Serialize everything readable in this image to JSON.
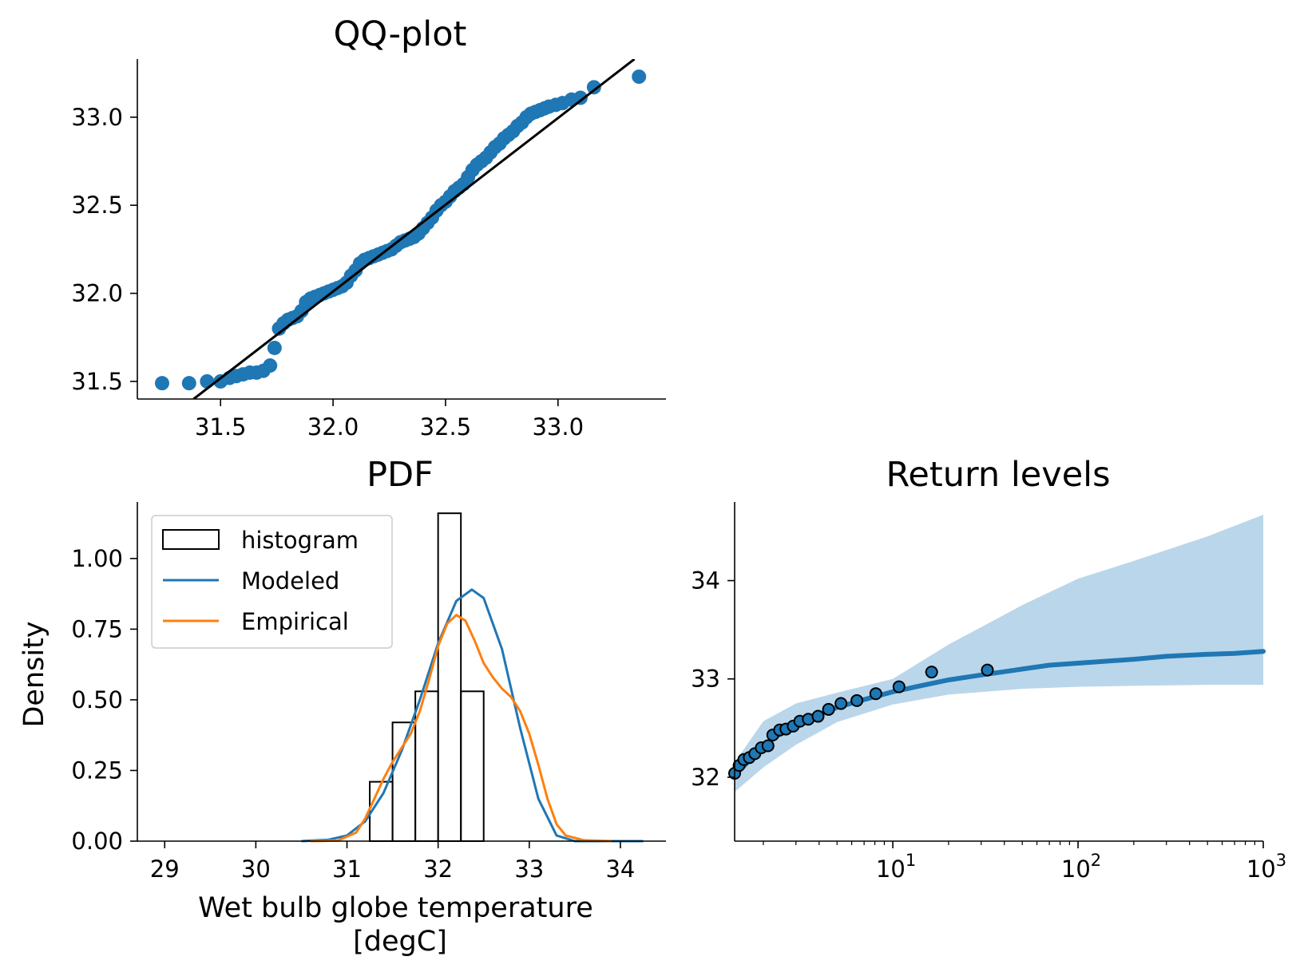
{
  "colors": {
    "blue": "#1f77b4",
    "orange": "#ff7f0e",
    "band": "#bad6ea",
    "black": "#000000"
  },
  "chart_data": [
    {
      "type": "scatter",
      "title": "QQ-plot",
      "xlabel": "",
      "ylabel": "",
      "xlim": [
        31.13,
        33.48
      ],
      "ylim": [
        31.4,
        33.33
      ],
      "x_ticks": [
        "31.5",
        "32.0",
        "32.5",
        "33.0"
      ],
      "y_ticks": [
        "31.5",
        "32.0",
        "32.5",
        "33.0"
      ],
      "grid": false,
      "points": [
        [
          31.24,
          31.49
        ],
        [
          31.36,
          31.49
        ],
        [
          31.44,
          31.5
        ],
        [
          31.5,
          31.5
        ],
        [
          31.54,
          31.52
        ],
        [
          31.57,
          31.53
        ],
        [
          31.6,
          31.54
        ],
        [
          31.63,
          31.55
        ],
        [
          31.66,
          31.55
        ],
        [
          31.69,
          31.56
        ],
        [
          31.72,
          31.59
        ],
        [
          31.74,
          31.69
        ],
        [
          31.76,
          31.8
        ],
        [
          31.78,
          31.83
        ],
        [
          31.8,
          31.85
        ],
        [
          31.82,
          31.86
        ],
        [
          31.84,
          31.87
        ],
        [
          31.86,
          31.9
        ],
        [
          31.88,
          31.95
        ],
        [
          31.9,
          31.97
        ],
        [
          31.92,
          31.98
        ],
        [
          31.94,
          31.99
        ],
        [
          31.96,
          32.0
        ],
        [
          31.98,
          32.01
        ],
        [
          32.0,
          32.02
        ],
        [
          32.02,
          32.03
        ],
        [
          32.04,
          32.04
        ],
        [
          32.06,
          32.06
        ],
        [
          32.08,
          32.1
        ],
        [
          32.1,
          32.13
        ],
        [
          32.12,
          32.17
        ],
        [
          32.14,
          32.19
        ],
        [
          32.16,
          32.2
        ],
        [
          32.18,
          32.21
        ],
        [
          32.2,
          32.22
        ],
        [
          32.22,
          32.23
        ],
        [
          32.24,
          32.24
        ],
        [
          32.26,
          32.25
        ],
        [
          32.28,
          32.27
        ],
        [
          32.3,
          32.29
        ],
        [
          32.32,
          32.3
        ],
        [
          32.34,
          32.31
        ],
        [
          32.36,
          32.32
        ],
        [
          32.38,
          32.34
        ],
        [
          32.4,
          32.37
        ],
        [
          32.42,
          32.4
        ],
        [
          32.44,
          32.43
        ],
        [
          32.46,
          32.47
        ],
        [
          32.48,
          32.5
        ],
        [
          32.5,
          32.52
        ],
        [
          32.52,
          32.55
        ],
        [
          32.54,
          32.58
        ],
        [
          32.56,
          32.6
        ],
        [
          32.58,
          32.62
        ],
        [
          32.6,
          32.66
        ],
        [
          32.62,
          32.7
        ],
        [
          32.64,
          32.73
        ],
        [
          32.66,
          32.75
        ],
        [
          32.68,
          32.77
        ],
        [
          32.7,
          32.8
        ],
        [
          32.72,
          32.83
        ],
        [
          32.74,
          32.85
        ],
        [
          32.76,
          32.88
        ],
        [
          32.78,
          32.9
        ],
        [
          32.8,
          32.92
        ],
        [
          32.82,
          32.95
        ],
        [
          32.84,
          32.97
        ],
        [
          32.86,
          33.0
        ],
        [
          32.88,
          33.02
        ],
        [
          32.9,
          33.03
        ],
        [
          32.92,
          33.04
        ],
        [
          32.94,
          33.05
        ],
        [
          32.96,
          33.06
        ],
        [
          32.99,
          33.07
        ],
        [
          33.02,
          33.08
        ],
        [
          33.06,
          33.1
        ],
        [
          33.1,
          33.11
        ],
        [
          33.16,
          33.17
        ],
        [
          33.36,
          33.23
        ]
      ],
      "reference_line": {
        "x": [
          31.38,
          33.34
        ],
        "y": [
          31.4,
          33.33
        ]
      }
    },
    {
      "type": "line",
      "title": "PDF",
      "xlabel": "Wet bulb globe temperature\n[degC]",
      "ylabel": "Density",
      "xlim": [
        28.7,
        34.5
      ],
      "ylim": [
        0,
        1.2
      ],
      "x_ticks": [
        "29",
        "30",
        "31",
        "32",
        "33",
        "34"
      ],
      "y_ticks": [
        "0.00",
        "0.25",
        "0.50",
        "0.75",
        "1.00"
      ],
      "legend_position": "upper-left",
      "histogram": {
        "name": "histogram",
        "bin_edges": [
          31.25,
          31.5,
          31.75,
          32.0,
          32.25,
          32.5,
          32.75
        ],
        "values": [
          0.21,
          0.42,
          0.53,
          1.16,
          0.53,
          0.0
        ]
      },
      "series": [
        {
          "name": "Modeled",
          "x": [
            30.5,
            30.8,
            31.0,
            31.2,
            31.4,
            31.6,
            31.8,
            32.0,
            32.2,
            32.37,
            32.5,
            32.7,
            32.9,
            33.1,
            33.3,
            33.5,
            33.7,
            34.25
          ],
          "y": [
            0.0,
            0.005,
            0.02,
            0.07,
            0.17,
            0.32,
            0.5,
            0.7,
            0.85,
            0.89,
            0.86,
            0.68,
            0.4,
            0.15,
            0.02,
            0.0,
            0.0,
            0.0
          ]
        },
        {
          "name": "Empirical",
          "x": [
            30.6,
            30.9,
            31.1,
            31.2,
            31.3,
            31.4,
            31.5,
            31.6,
            31.7,
            31.8,
            31.9,
            32.0,
            32.1,
            32.2,
            32.3,
            32.4,
            32.5,
            32.6,
            32.7,
            32.8,
            32.9,
            33.0,
            33.1,
            33.2,
            33.3,
            33.4,
            33.6,
            33.9
          ],
          "y": [
            0.0,
            0.002,
            0.03,
            0.08,
            0.15,
            0.22,
            0.28,
            0.33,
            0.38,
            0.46,
            0.57,
            0.69,
            0.77,
            0.8,
            0.78,
            0.71,
            0.63,
            0.58,
            0.54,
            0.51,
            0.46,
            0.38,
            0.27,
            0.15,
            0.06,
            0.02,
            0.003,
            0.0
          ]
        }
      ]
    },
    {
      "type": "line",
      "title": "Return levels",
      "xlabel": "",
      "ylabel": "",
      "xscale": "log",
      "xlim": [
        1.4,
        1000
      ],
      "ylim": [
        31.35,
        34.8
      ],
      "x_ticks": [
        {
          "base": "10",
          "exp": "1"
        },
        {
          "base": "10",
          "exp": "2"
        },
        {
          "base": "10",
          "exp": "3"
        }
      ],
      "y_ticks": [
        "32",
        "33",
        "34"
      ],
      "fit_curve": {
        "x": [
          1.4,
          1.6,
          2,
          2.5,
          3,
          4,
          5,
          7,
          10,
          15,
          20,
          30,
          50,
          70,
          100,
          200,
          300,
          500,
          700,
          1000
        ],
        "y": [
          32.02,
          32.13,
          32.32,
          32.45,
          32.54,
          32.64,
          32.71,
          32.79,
          32.87,
          32.94,
          32.99,
          33.04,
          33.1,
          33.14,
          33.16,
          33.2,
          33.23,
          33.25,
          33.26,
          33.28
        ]
      },
      "confidence_band": {
        "x": [
          1.4,
          2,
          3,
          5,
          10,
          20,
          50,
          100,
          200,
          500,
          1000
        ],
        "lower": [
          31.85,
          32.1,
          32.33,
          32.56,
          32.74,
          32.84,
          32.9,
          32.92,
          32.93,
          32.94,
          32.94
        ],
        "upper": [
          32.15,
          32.57,
          32.75,
          32.86,
          33.0,
          33.35,
          33.75,
          34.02,
          34.2,
          34.45,
          34.67
        ]
      },
      "observations": {
        "x": [
          1.4,
          1.48,
          1.57,
          1.68,
          1.8,
          1.95,
          2.12,
          2.25,
          2.45,
          2.65,
          2.9,
          3.15,
          3.5,
          3.95,
          4.5,
          5.25,
          6.4,
          8.1,
          10.8,
          16.2,
          32.4
        ],
        "y": [
          32.04,
          32.12,
          32.18,
          32.2,
          32.24,
          32.3,
          32.32,
          32.43,
          32.48,
          32.49,
          32.52,
          32.57,
          32.59,
          32.62,
          32.69,
          32.75,
          32.78,
          32.85,
          32.92,
          33.07,
          33.09
        ]
      }
    }
  ]
}
